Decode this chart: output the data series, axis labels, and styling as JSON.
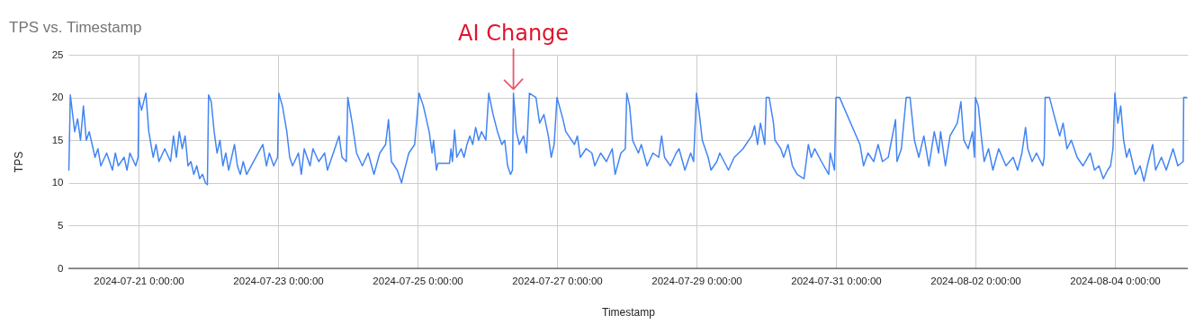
{
  "chart_data": {
    "type": "line",
    "title": "TPS vs. Timestamp",
    "xlabel": "Timestamp",
    "ylabel": "TPS",
    "grid": true,
    "annotations": [
      {
        "text": "AI Change",
        "x": "2024-07-26T09:00",
        "y": 20.9
      }
    ],
    "xlim": [
      "2024-07-19T23:50",
      "2024-08-05T01:05"
    ],
    "xticks": [
      {
        "value": "2024-07-21T00:00",
        "label": "2024-07-21 0:00:00"
      },
      {
        "value": "2024-07-23T00:00",
        "label": "2024-07-23 0:00:00"
      },
      {
        "value": "2024-07-25T00:00",
        "label": "2024-07-25 0:00:00"
      },
      {
        "value": "2024-07-27T00:00",
        "label": "2024-07-27 0:00:00"
      },
      {
        "value": "2024-07-29T00:00",
        "label": "2024-07-29 0:00:00"
      },
      {
        "value": "2024-07-31T00:00",
        "label": "2024-07-31 0:00:00"
      },
      {
        "value": "2024-08-02T00:00",
        "label": "2024-08-02 0:00:00"
      },
      {
        "value": "2024-08-04T00:00",
        "label": "2024-08-04 0:00:00"
      }
    ],
    "ylim": [
      0,
      25
    ],
    "yticks": [
      0,
      5,
      10,
      15,
      20,
      25
    ],
    "x": [
      "2024-07-20T00:00",
      "2024-07-20T00:30",
      "2024-07-20T02:00",
      "2024-07-20T03:00",
      "2024-07-20T04:00",
      "2024-07-20T05:00",
      "2024-07-20T06:00",
      "2024-07-20T07:00",
      "2024-07-20T09:00",
      "2024-07-20T10:00",
      "2024-07-20T11:00",
      "2024-07-20T13:00",
      "2024-07-20T15:00",
      "2024-07-20T16:00",
      "2024-07-20T17:00",
      "2024-07-20T19:00",
      "2024-07-20T20:00",
      "2024-07-20T21:00",
      "2024-07-20T23:00",
      "2024-07-20T23:50",
      "2024-07-21T00:05",
      "2024-07-21T01:00",
      "2024-07-21T02:30",
      "2024-07-21T03:30",
      "2024-07-21T05:00",
      "2024-07-21T06:00",
      "2024-07-21T07:00",
      "2024-07-21T09:00",
      "2024-07-21T11:00",
      "2024-07-21T12:00",
      "2024-07-21T13:00",
      "2024-07-21T14:00",
      "2024-07-21T15:00",
      "2024-07-21T16:00",
      "2024-07-21T17:00",
      "2024-07-21T18:00",
      "2024-07-21T19:00",
      "2024-07-21T20:00",
      "2024-07-21T21:00",
      "2024-07-21T22:00",
      "2024-07-21T23:00",
      "2024-07-21T23:40",
      "2024-07-22T00:05",
      "2024-07-22T01:00",
      "2024-07-22T02:00",
      "2024-07-22T03:00",
      "2024-07-22T04:00",
      "2024-07-22T05:00",
      "2024-07-22T06:00",
      "2024-07-22T07:00",
      "2024-07-22T09:00",
      "2024-07-22T10:00",
      "2024-07-22T11:00",
      "2024-07-22T12:00",
      "2024-07-22T13:10",
      "2024-07-22T18:45",
      "2024-07-22T20:00",
      "2024-07-22T21:00",
      "2024-07-22T22:30",
      "2024-07-22T23:50",
      "2024-07-23T00:15",
      "2024-07-23T01:30",
      "2024-07-23T03:00",
      "2024-07-23T04:00",
      "2024-07-23T05:00",
      "2024-07-23T07:00",
      "2024-07-23T08:00",
      "2024-07-23T09:00",
      "2024-07-23T11:00",
      "2024-07-23T12:00",
      "2024-07-23T14:00",
      "2024-07-23T16:00",
      "2024-07-23T17:00",
      "2024-07-23T19:00",
      "2024-07-23T21:00",
      "2024-07-23T22:00",
      "2024-07-23T23:30",
      "2024-07-24T00:00",
      "2024-07-24T01:30",
      "2024-07-24T03:00",
      "2024-07-24T05:00",
      "2024-07-24T07:00",
      "2024-07-24T09:00",
      "2024-07-24T11:00",
      "2024-07-24T13:00",
      "2024-07-24T14:00",
      "2024-07-24T15:00",
      "2024-07-24T17:00",
      "2024-07-24T18:30",
      "2024-07-24T19:30",
      "2024-07-24T21:00",
      "2024-07-24T23:00",
      "2024-07-25T00:30",
      "2024-07-25T02:00",
      "2024-07-25T04:00",
      "2024-07-25T05:00",
      "2024-07-25T05:30",
      "2024-07-25T06:30",
      "2024-07-25T07:00",
      "2024-07-25T11:00",
      "2024-07-25T11:30",
      "2024-07-25T12:00",
      "2024-07-25T12:45",
      "2024-07-25T13:30",
      "2024-07-25T15:00",
      "2024-07-25T16:00",
      "2024-07-25T17:00",
      "2024-07-25T18:00",
      "2024-07-25T19:00",
      "2024-07-25T20:00",
      "2024-07-25T21:00",
      "2024-07-25T22:00",
      "2024-07-25T23:30",
      "2024-07-26T00:30",
      "2024-07-26T02:00",
      "2024-07-26T03:30",
      "2024-07-26T05:00",
      "2024-07-26T06:00",
      "2024-07-26T07:00",
      "2024-07-26T08:00",
      "2024-07-26T08:40",
      "2024-07-26T09:00",
      "2024-07-26T10:00",
      "2024-07-26T11:00",
      "2024-07-26T12:30",
      "2024-07-26T13:30",
      "2024-07-26T14:30",
      "2024-07-26T16:45",
      "2024-07-26T18:00",
      "2024-07-26T19:30",
      "2024-07-26T21:00",
      "2024-07-26T22:00",
      "2024-07-26T23:00",
      "2024-07-27T00:00",
      "2024-07-27T02:00",
      "2024-07-27T03:00",
      "2024-07-27T04:00",
      "2024-07-27T06:00",
      "2024-07-27T07:00",
      "2024-07-27T08:00",
      "2024-07-27T10:00",
      "2024-07-27T12:00",
      "2024-07-27T13:00",
      "2024-07-27T15:00",
      "2024-07-27T17:00",
      "2024-07-27T19:00",
      "2024-07-27T20:00",
      "2024-07-27T22:00",
      "2024-07-27T23:30",
      "2024-07-28T00:00",
      "2024-07-28T01:00",
      "2024-07-28T02:00",
      "2024-07-28T04:00",
      "2024-07-28T05:00",
      "2024-07-28T07:00",
      "2024-07-28T09:00",
      "2024-07-28T11:00",
      "2024-07-28T12:00",
      "2024-07-28T13:00",
      "2024-07-28T15:00",
      "2024-07-28T17:00",
      "2024-07-28T18:00",
      "2024-07-28T20:00",
      "2024-07-28T22:00",
      "2024-07-28T23:00",
      "2024-07-29T00:00",
      "2024-07-29T01:00",
      "2024-07-29T02:00",
      "2024-07-29T04:00",
      "2024-07-29T05:00",
      "2024-07-29T07:00",
      "2024-07-29T08:00",
      "2024-07-29T11:00",
      "2024-07-29T13:00",
      "2024-07-29T16:00",
      "2024-07-29T19:00",
      "2024-07-29T20:00",
      "2024-07-29T21:00",
      "2024-07-29T22:00",
      "2024-07-29T23:30",
      "2024-07-30T00:00",
      "2024-07-30T01:00",
      "2024-07-30T02:30",
      "2024-07-30T03:00",
      "2024-07-30T05:00",
      "2024-07-30T06:00",
      "2024-07-30T07:30",
      "2024-07-30T09:00",
      "2024-07-30T10:40",
      "2024-07-30T13:00",
      "2024-07-30T14:30",
      "2024-07-30T15:30",
      "2024-07-30T16:40",
      "2024-07-30T19:00",
      "2024-07-30T21:30",
      "2024-07-30T22:00",
      "2024-07-30T23:30",
      "2024-07-31T00:00",
      "2024-07-31T01:15",
      "2024-07-31T08:15",
      "2024-07-31T09:30",
      "2024-07-31T11:00",
      "2024-07-31T13:00",
      "2024-07-31T14:30",
      "2024-07-31T16:00",
      "2024-07-31T18:00",
      "2024-07-31T20:30",
      "2024-07-31T21:00",
      "2024-07-31T22:30",
      "2024-08-01T00:10",
      "2024-08-01T01:30",
      "2024-08-01T03:00",
      "2024-08-01T04:30",
      "2024-08-01T06:15",
      "2024-08-01T08:00",
      "2024-08-01T09:50",
      "2024-08-01T11:20",
      "2024-08-01T12:00",
      "2024-08-01T13:40",
      "2024-08-01T15:15",
      "2024-08-01T17:45",
      "2024-08-01T19:00",
      "2024-08-01T20:00",
      "2024-08-01T21:30",
      "2024-08-01T23:00",
      "2024-08-01T23:40",
      "2024-08-02T00:00",
      "2024-08-02T01:00",
      "2024-08-02T02:00",
      "2024-08-02T03:00",
      "2024-08-02T04:30",
      "2024-08-02T06:00",
      "2024-08-02T08:00",
      "2024-08-02T10:30",
      "2024-08-02T13:00",
      "2024-08-02T14:30",
      "2024-08-02T16:00",
      "2024-08-02T17:15",
      "2024-08-02T18:00",
      "2024-08-02T19:30",
      "2024-08-02T21:00",
      "2024-08-02T23:10",
      "2024-08-02T23:40",
      "2024-08-03T00:00",
      "2024-08-03T01:30",
      "2024-08-03T03:00",
      "2024-08-03T05:00",
      "2024-08-03T06:10",
      "2024-08-03T07:30",
      "2024-08-03T09:00",
      "2024-08-03T11:00",
      "2024-08-03T13:00",
      "2024-08-03T15:30",
      "2024-08-03T17:00",
      "2024-08-03T18:30",
      "2024-08-03T20:00",
      "2024-08-03T21:30",
      "2024-08-03T22:30",
      "2024-08-03T23:20",
      "2024-08-04T00:00",
      "2024-08-04T01:00",
      "2024-08-04T02:00",
      "2024-08-04T03:00",
      "2024-08-04T04:00",
      "2024-08-04T05:00",
      "2024-08-04T07:00",
      "2024-08-04T08:40",
      "2024-08-04T10:00",
      "2024-08-04T11:30",
      "2024-08-04T13:00",
      "2024-08-04T14:00",
      "2024-08-04T16:00",
      "2024-08-04T17:40",
      "2024-08-04T20:00",
      "2024-08-04T21:40",
      "2024-08-04T23:30",
      "2024-08-04T23:40",
      "2024-08-05T00:40"
    ],
    "series": [
      {
        "color": "#4285f4",
        "values": [
          11.5,
          20.3,
          16,
          17.5,
          15,
          19,
          15,
          16,
          13,
          14,
          12,
          13.5,
          11.5,
          13.5,
          12,
          13,
          11.5,
          13.5,
          12,
          13,
          20,
          18.5,
          20.5,
          16,
          13,
          14.5,
          12.5,
          14,
          12.5,
          15.5,
          13,
          16,
          14,
          15.5,
          12,
          12.5,
          11,
          12,
          10.5,
          11,
          10,
          9.8,
          20.3,
          19.5,
          16,
          13.5,
          15,
          12,
          13.5,
          11.5,
          14.5,
          12,
          11,
          12.5,
          11,
          14.5,
          12,
          13.5,
          12,
          13,
          20.5,
          19,
          16,
          13,
          12,
          13.5,
          11,
          14,
          12,
          14,
          12.5,
          13.5,
          11.5,
          13.5,
          15.5,
          13,
          12.5,
          20,
          17,
          13.5,
          12,
          13.5,
          11,
          13.5,
          14.5,
          17.4,
          12.5,
          11.5,
          10,
          11.5,
          13.5,
          14.5,
          20.5,
          19,
          16,
          13.5,
          15,
          11.5,
          12.3,
          12.3,
          14,
          12.5,
          16.2,
          13,
          14,
          13,
          14.5,
          15.5,
          14.5,
          16.5,
          15,
          16,
          15,
          20.5,
          18,
          16,
          14.5,
          15,
          12,
          11,
          11.5,
          20.5,
          16,
          14.5,
          15.5,
          13.5,
          20.5,
          20,
          17,
          18,
          15.5,
          13,
          14.5,
          20,
          17.5,
          16,
          15.5,
          14.5,
          15.5,
          13,
          14,
          13.5,
          12,
          13.5,
          12.5,
          14,
          11,
          13.5,
          14,
          20.5,
          19,
          15,
          13.5,
          14.5,
          12,
          13.5,
          13,
          15.5,
          13,
          12,
          13.5,
          14,
          11.5,
          13.5,
          12.5,
          20.5,
          18,
          15,
          13,
          11.5,
          12.5,
          13.5,
          11.5,
          13,
          14,
          15.5,
          16.7,
          14.5,
          17,
          14.5,
          20,
          20,
          17,
          15,
          14,
          13,
          14.5,
          12,
          11,
          10.5,
          14.5,
          13,
          14,
          12.5,
          11,
          13.5,
          11.5,
          20,
          20,
          14.5,
          12,
          13.5,
          12.5,
          14.5,
          12.5,
          13,
          17.4,
          12.5,
          14,
          20,
          20,
          15,
          13,
          15.5,
          12,
          16,
          13.5,
          16,
          12,
          15.5,
          17,
          19.5,
          15,
          14,
          16,
          13,
          20,
          19,
          15.5,
          12.5,
          14,
          11.5,
          14,
          12,
          13,
          11.5,
          13.5,
          16.5,
          14,
          12.5,
          13.5,
          12,
          13,
          20,
          20,
          18,
          15.5,
          17,
          14,
          15,
          13,
          12,
          13.5,
          11.5,
          12,
          10.5,
          11.5,
          12,
          14,
          20.5,
          17,
          19,
          15,
          13,
          14,
          11,
          12,
          10.2,
          12.5,
          14.5,
          11.5,
          13,
          11.5,
          14,
          12,
          12.5,
          20,
          20
        ]
      }
    ]
  }
}
